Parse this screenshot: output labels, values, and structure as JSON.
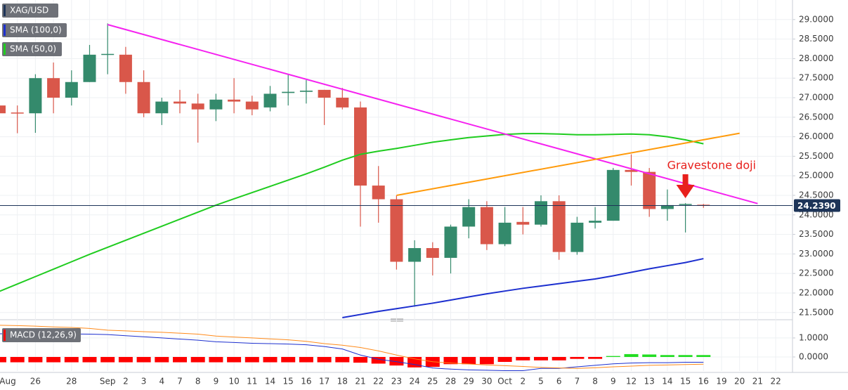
{
  "chart_data": [
    {
      "type": "candlestick",
      "title": "XAG/USD",
      "up_color": "#348a6c",
      "down_color": "#d9574a",
      "open": [
        26.8,
        26.62,
        26.6,
        27.5,
        27.0,
        27.4,
        28.1,
        28.1,
        27.4,
        26.6,
        26.9,
        26.85,
        26.7,
        26.95,
        26.9,
        26.75,
        27.12,
        27.15,
        27.2,
        27.0,
        26.75,
        24.75,
        24.4,
        22.8,
        23.15,
        22.9,
        23.7,
        24.2,
        23.25,
        23.82,
        23.75,
        24.35,
        23.05,
        23.8,
        23.85,
        25.15,
        25.1,
        24.15,
        24.27,
        24.26
      ],
      "high": [
        27.2,
        26.8,
        27.6,
        27.9,
        27.7,
        28.35,
        28.9,
        28.3,
        27.7,
        27.0,
        27.2,
        27.1,
        27.1,
        27.5,
        27.05,
        27.3,
        27.6,
        27.45,
        27.2,
        27.25,
        26.9,
        25.25,
        24.5,
        23.35,
        23.3,
        23.75,
        24.4,
        24.35,
        24.2,
        24.2,
        24.5,
        24.5,
        23.95,
        24.2,
        25.2,
        25.55,
        25.2,
        24.65,
        24.3,
        24.28
      ],
      "low": [
        26.3,
        26.09,
        26.1,
        26.6,
        26.8,
        27.4,
        27.6,
        27.1,
        26.5,
        26.3,
        26.6,
        25.85,
        26.4,
        26.6,
        26.55,
        26.65,
        26.8,
        26.85,
        26.3,
        26.7,
        23.7,
        23.8,
        22.6,
        21.65,
        22.45,
        22.5,
        23.4,
        23.1,
        23.2,
        23.5,
        23.7,
        22.85,
        22.98,
        23.65,
        23.85,
        24.75,
        23.95,
        23.85,
        23.55,
        24.18
      ],
      "close": [
        26.6,
        26.6,
        27.5,
        27.0,
        27.4,
        28.1,
        28.12,
        27.4,
        26.6,
        26.9,
        26.85,
        26.7,
        26.95,
        26.9,
        26.7,
        27.1,
        27.15,
        27.18,
        27.0,
        26.75,
        24.75,
        24.4,
        22.8,
        23.15,
        22.9,
        23.7,
        24.2,
        23.25,
        23.8,
        23.75,
        24.35,
        23.05,
        23.8,
        23.85,
        25.15,
        25.1,
        24.15,
        24.25,
        24.28,
        24.24
      ],
      "series": [
        {
          "name": "SMA (100,0)",
          "color": "#1c2fcf",
          "values": [
            null,
            null,
            null,
            null,
            null,
            null,
            null,
            null,
            null,
            null,
            null,
            null,
            null,
            null,
            null,
            null,
            null,
            null,
            null,
            21.37,
            21.45,
            21.53,
            21.6,
            21.67,
            21.74,
            21.82,
            21.9,
            21.98,
            22.05,
            22.12,
            22.18,
            22.24,
            22.3,
            22.36,
            22.44,
            22.53,
            22.62,
            22.7,
            22.78,
            22.88
          ]
        },
        {
          "name": "SMA (50,0)",
          "color": "#1fcc1f",
          "values": [
            22.04,
            22.23,
            22.42,
            22.61,
            22.8,
            22.99,
            23.17,
            23.35,
            23.53,
            23.71,
            23.89,
            24.07,
            24.25,
            24.41,
            24.57,
            24.73,
            24.89,
            25.05,
            25.22,
            25.4,
            25.55,
            25.63,
            25.7,
            25.78,
            25.86,
            25.92,
            25.98,
            26.02,
            26.06,
            26.08,
            26.08,
            26.07,
            26.05,
            26.05,
            26.06,
            26.07,
            26.05,
            26.0,
            25.92,
            25.82
          ]
        }
      ],
      "trendlines": [
        {
          "color": "#f522f0",
          "points": [
            [
              6,
              28.87
            ],
            [
              42,
              24.29
            ]
          ]
        },
        {
          "color": "#ff9a0a",
          "points": [
            [
              22,
              24.5
            ],
            [
              41,
              26.09
            ]
          ]
        }
      ],
      "last_price": {
        "value": 24.239,
        "label": "24.2390"
      },
      "annotation": {
        "text": "Gravestone doji",
        "index": 38,
        "color": "#e8201c"
      },
      "ylim": [
        21.37,
        29.5
      ],
      "yticks": [
        {
          "value": 21.5,
          "label": "21.5000"
        },
        {
          "value": 22.0,
          "label": "22.0000"
        },
        {
          "value": 22.5,
          "label": "22.5000"
        },
        {
          "value": 23.0,
          "label": "23.0000"
        },
        {
          "value": 23.5,
          "label": "23.5000"
        },
        {
          "value": 24.0,
          "label": "24.0000"
        },
        {
          "value": 24.5,
          "label": "24.5000"
        },
        {
          "value": 25.0,
          "label": "25.0000"
        },
        {
          "value": 25.5,
          "label": "25.5000"
        },
        {
          "value": 26.0,
          "label": "26.0000"
        },
        {
          "value": 26.5,
          "label": "26.5000"
        },
        {
          "value": 27.0,
          "label": "27.0000"
        },
        {
          "value": 27.5,
          "label": "27.5000"
        },
        {
          "value": 28.0,
          "label": "28.0000"
        },
        {
          "value": 28.5,
          "label": "28.5000"
        },
        {
          "value": 29.0,
          "label": "29.0000"
        }
      ],
      "grid": true
    },
    {
      "type": "macd",
      "title": "MACD (12,26,9)",
      "categories": [
        "Aug",
        null,
        "26",
        null,
        "28",
        null,
        "Sep",
        "2",
        "3",
        "4",
        "7",
        "8",
        "9",
        "10",
        "11",
        "14",
        "15",
        "16",
        "17",
        "18",
        "21",
        "22",
        "23",
        "24",
        "25",
        "28",
        "29",
        "30",
        "Oct",
        "2",
        "5",
        "6",
        "7",
        "8",
        "9",
        "12",
        "13",
        "14",
        "15",
        "16",
        "19",
        "20",
        "21",
        "22"
      ],
      "histogram": [
        -0.28,
        -0.28,
        -0.28,
        -0.28,
        -0.28,
        -0.28,
        -0.28,
        -0.28,
        -0.28,
        -0.28,
        -0.28,
        -0.28,
        -0.28,
        -0.28,
        -0.28,
        -0.28,
        -0.28,
        -0.28,
        -0.28,
        -0.28,
        -0.3,
        -0.35,
        -0.45,
        -0.55,
        -0.52,
        -0.38,
        -0.38,
        -0.38,
        -0.26,
        -0.18,
        -0.18,
        -0.18,
        -0.1,
        -0.1,
        0.05,
        0.15,
        0.13,
        0.1,
        0.1,
        0.1
      ],
      "macd": [
        1.22,
        1.22,
        1.22,
        1.21,
        1.21,
        1.2,
        1.18,
        1.12,
        1.06,
        1.0,
        0.94,
        0.88,
        0.8,
        0.76,
        0.72,
        0.7,
        0.68,
        0.64,
        0.55,
        0.42,
        0.1,
        -0.12,
        -0.25,
        -0.4,
        -0.58,
        -0.64,
        -0.68,
        -0.7,
        -0.72,
        -0.72,
        -0.6,
        -0.6,
        -0.52,
        -0.44,
        -0.36,
        -0.32,
        -0.3,
        -0.3,
        -0.28,
        -0.28
      ],
      "signal": [
        1.67,
        1.65,
        1.62,
        1.58,
        1.55,
        1.5,
        1.41,
        1.37,
        1.33,
        1.3,
        1.25,
        1.2,
        1.1,
        1.05,
        1.0,
        0.95,
        0.9,
        0.82,
        0.7,
        0.62,
        0.5,
        0.32,
        0.1,
        -0.1,
        -0.25,
        -0.32,
        -0.37,
        -0.42,
        -0.46,
        -0.5,
        -0.55,
        -0.58,
        -0.6,
        -0.57,
        -0.52,
        -0.48,
        -0.44,
        -0.42,
        -0.4,
        -0.38
      ],
      "macd_color": "#1c2fcf",
      "signal_color": "#ff8a1a",
      "negative_color": "#ff0000",
      "positive_color": "#22dd22",
      "ylim": [
        -0.74,
        1.7
      ],
      "yticks": [
        {
          "value": 0,
          "label": "0.0000"
        },
        {
          "value": 1,
          "label": "1.0000"
        }
      ],
      "grid": true
    }
  ]
}
